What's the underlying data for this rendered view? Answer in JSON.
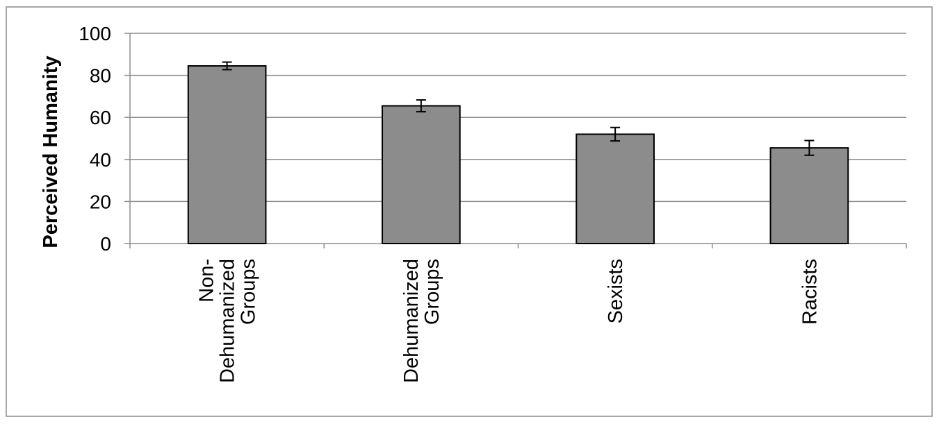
{
  "chart_data": {
    "type": "bar",
    "ylabel": "Perceived Humanity",
    "xlabel": "",
    "ylim": [
      0,
      100
    ],
    "yticks": [
      0,
      20,
      40,
      60,
      80,
      100
    ],
    "grid": true,
    "legend": "none",
    "categories": [
      [
        "Non-",
        "Dehumanized",
        "Groups"
      ],
      [
        "Dehumanized",
        "Groups"
      ],
      [
        "Sexists"
      ],
      [
        "Racists"
      ]
    ],
    "values": [
      84.5,
      65.5,
      52,
      45.5
    ],
    "error": [
      1.8,
      2.8,
      3.2,
      3.5
    ],
    "colors": {
      "bar": "#8c8c8c",
      "bar_edge": "#000000",
      "grid": "#8c8c8c",
      "frame": "#8c8c8c"
    }
  }
}
